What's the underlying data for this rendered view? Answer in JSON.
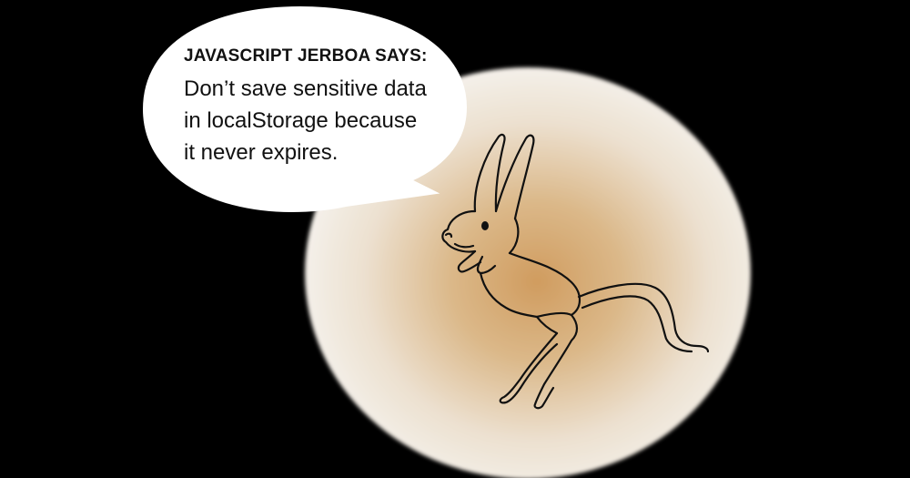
{
  "speech_bubble": {
    "heading": "JAVASCRIPT JERBOA SAYS:",
    "lines": [
      "Don’t save sensitive data",
      "in localStorage because",
      "it never expires."
    ]
  },
  "illustration": {
    "subject": "jerboa",
    "icon": "jerboa-icon"
  },
  "colors": {
    "background": "#000000",
    "circle_center": "#d4a268",
    "circle_edge": "#f3efea",
    "bubble_fill": "#ffffff",
    "ink": "#111111"
  }
}
